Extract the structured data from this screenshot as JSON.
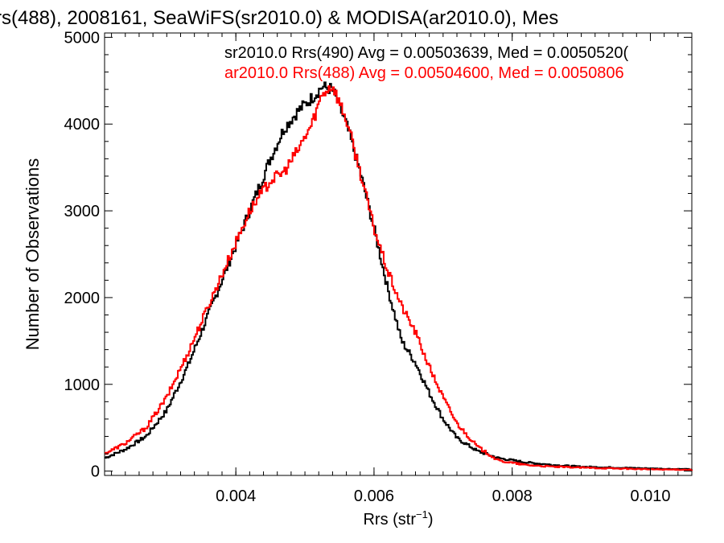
{
  "chart_data": {
    "type": "line",
    "title": "rs(488), 2008161, SeaWiFS(sr2010.0) & MODISA(ar2010.0), Mes",
    "xlabel": "Rrs (str",
    "xlabel_sup": "−1",
    "xlabel_close": ")",
    "ylabel": "Number of Observations",
    "xlim": [
      0.0021,
      0.0106
    ],
    "ylim": [
      -50,
      5050
    ],
    "xticks": [
      0.004,
      0.006,
      0.008,
      0.01
    ],
    "xtick_labels": [
      "0.004",
      "0.006",
      "0.008",
      "0.010"
    ],
    "yticks": [
      0,
      1000,
      2000,
      3000,
      4000,
      5000
    ],
    "ytick_labels": [
      "0",
      "1000",
      "2000",
      "3000",
      "4000",
      "5000"
    ],
    "grid": false,
    "legend_position": "top-right",
    "series": [
      {
        "name": "sr2010.0 Rrs(490) Avg = 0.00503639, Med = 0.0050520(",
        "color": "#000000",
        "x": [
          0.0021,
          0.0024,
          0.0027,
          0.003,
          0.0033,
          0.0036,
          0.0039,
          0.0042,
          0.0045,
          0.0047,
          0.0049,
          0.0051,
          0.00525,
          0.0054,
          0.0056,
          0.0058,
          0.006,
          0.0062,
          0.0064,
          0.0066,
          0.0068,
          0.007,
          0.0072,
          0.0075,
          0.0078,
          0.0082,
          0.0086,
          0.009,
          0.0095,
          0.01,
          0.0106
        ],
        "values": [
          150,
          250,
          400,
          700,
          1200,
          1800,
          2400,
          3000,
          3600,
          3950,
          4150,
          4300,
          4430,
          4400,
          4000,
          3450,
          2800,
          2100,
          1500,
          1250,
          900,
          600,
          380,
          230,
          150,
          100,
          70,
          50,
          40,
          30,
          20
        ]
      },
      {
        "name": "ar2010.0 Rrs(488) Avg = 0.00504600, Med = 0.0050806",
        "color": "#ff0000",
        "x": [
          0.0021,
          0.0024,
          0.0027,
          0.003,
          0.0033,
          0.0036,
          0.0039,
          0.0042,
          0.0045,
          0.0047,
          0.0049,
          0.0051,
          0.00525,
          0.0054,
          0.0056,
          0.0058,
          0.006,
          0.0062,
          0.0064,
          0.0066,
          0.0068,
          0.007,
          0.0072,
          0.0075,
          0.0078,
          0.0082,
          0.0086,
          0.009,
          0.0095,
          0.01,
          0.0106
        ],
        "values": [
          200,
          320,
          500,
          850,
          1350,
          1900,
          2450,
          3000,
          3350,
          3450,
          3700,
          4000,
          4350,
          4450,
          4050,
          3450,
          2800,
          2300,
          1900,
          1600,
          1200,
          850,
          550,
          280,
          120,
          70,
          50,
          40,
          30,
          20,
          15
        ]
      }
    ]
  }
}
